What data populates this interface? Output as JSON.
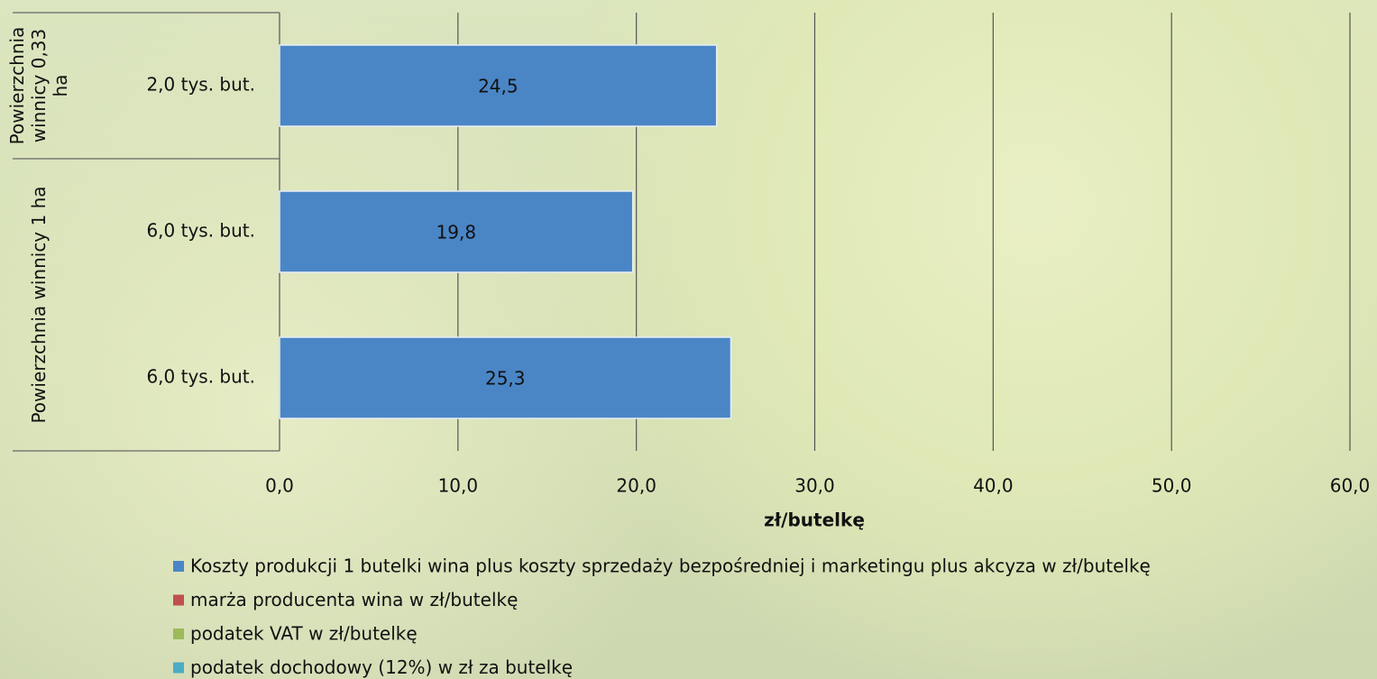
{
  "chart_data": {
    "type": "hbar",
    "groups": [
      {
        "label": "Powierzchnia winnicy 0,33 ha",
        "size": 1
      },
      {
        "label": "Powierzchnia winnicy 1 ha",
        "size": 2
      }
    ],
    "categories": [
      "2,0 tys. but.",
      "6,0 tys. but.",
      "6,0 tys. but."
    ],
    "series": [
      {
        "name": "Koszty produkcji 1 butelki wina plus koszty sprzedaży bezpośredniej i marketingu plus akcyza w zł/butelkę",
        "color": "#4a86c6",
        "values": [
          24.5,
          19.8,
          25.3
        ],
        "value_labels": [
          "24,5",
          "19,8",
          "25,3"
        ]
      },
      {
        "name": "marża producenta wina w zł/butelkę",
        "color": "#c0504d"
      },
      {
        "name": "podatek VAT w zł/butelkę",
        "color": "#9bbb59"
      },
      {
        "name": "podatek dochodowy (12%) w zł za butelkę",
        "color": "#4bacc6"
      }
    ],
    "xlabel": "zł/butelkę",
    "xlim": [
      0,
      60
    ],
    "xticks": [
      {
        "value": 0,
        "label": "0,0"
      },
      {
        "value": 10,
        "label": "10,0"
      },
      {
        "value": 20,
        "label": "20,0"
      },
      {
        "value": 30,
        "label": "30,0"
      },
      {
        "value": 40,
        "label": "40,0"
      },
      {
        "value": 50,
        "label": "50,0"
      },
      {
        "value": 60,
        "label": "60,0"
      }
    ],
    "grid": true
  }
}
